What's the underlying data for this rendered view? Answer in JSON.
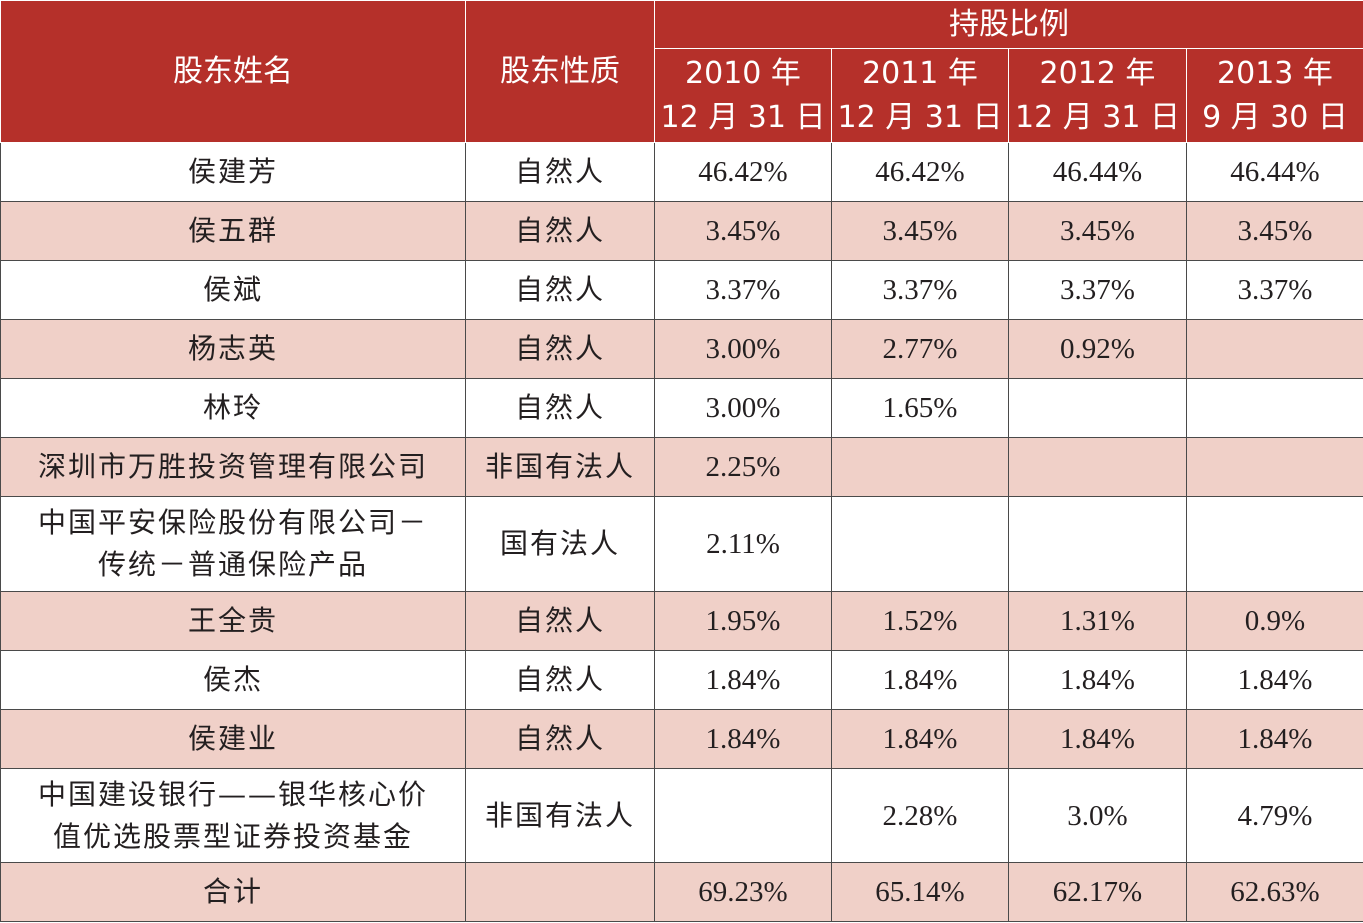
{
  "header": {
    "col_name": "股东姓名",
    "col_nature": "股东性质",
    "group_title": "持股比例",
    "dates": [
      {
        "line1": "2010 年",
        "line2": "12 月 31 日"
      },
      {
        "line1": "2011 年",
        "line2": "12 月 31 日"
      },
      {
        "line1": "2012 年",
        "line2": "12 月 31 日"
      },
      {
        "line1": "2013 年",
        "line2": "9 月 30 日"
      }
    ]
  },
  "rows": [
    {
      "name": "侯建芳",
      "nature": "自然人",
      "values": [
        "46.42%",
        "46.42%",
        "46.44%",
        "46.44%"
      ]
    },
    {
      "name": "侯五群",
      "nature": "自然人",
      "values": [
        "3.45%",
        "3.45%",
        "3.45%",
        "3.45%"
      ]
    },
    {
      "name": "侯斌",
      "nature": "自然人",
      "values": [
        "3.37%",
        "3.37%",
        "3.37%",
        "3.37%"
      ]
    },
    {
      "name": "杨志英",
      "nature": "自然人",
      "values": [
        "3.00%",
        "2.77%",
        "0.92%",
        ""
      ]
    },
    {
      "name": "林玲",
      "nature": "自然人",
      "values": [
        "3.00%",
        "1.65%",
        "",
        ""
      ]
    },
    {
      "name": "深圳市万胜投资管理有限公司",
      "nature": "非国有法人",
      "values": [
        "2.25%",
        "",
        "",
        ""
      ]
    },
    {
      "name_line1": "中国平安保险股份有限公司－",
      "name_line2": "传统－普通保险产品",
      "nature": "国有法人",
      "values": [
        "2.11%",
        "",
        "",
        ""
      ]
    },
    {
      "name": "王全贵",
      "nature": "自然人",
      "values": [
        "1.95%",
        "1.52%",
        "1.31%",
        "0.9%"
      ]
    },
    {
      "name": "侯杰",
      "nature": "自然人",
      "values": [
        "1.84%",
        "1.84%",
        "1.84%",
        "1.84%"
      ]
    },
    {
      "name": "侯建业",
      "nature": "自然人",
      "values": [
        "1.84%",
        "1.84%",
        "1.84%",
        "1.84%"
      ]
    },
    {
      "name_line1": "中国建设银行——银华核心价",
      "name_line2": "值优选股票型证券投资基金",
      "nature": "非国有法人",
      "values": [
        "",
        "2.28%",
        "3.0%",
        "4.79%"
      ]
    }
  ],
  "total": {
    "label": "合计",
    "nature": "",
    "values": [
      "69.23%",
      "65.14%",
      "62.17%",
      "62.63%"
    ]
  },
  "colors": {
    "header_bg": "#b5302a",
    "alt_row_bg": "#f0d0c8",
    "border": "#4a4a4a"
  }
}
